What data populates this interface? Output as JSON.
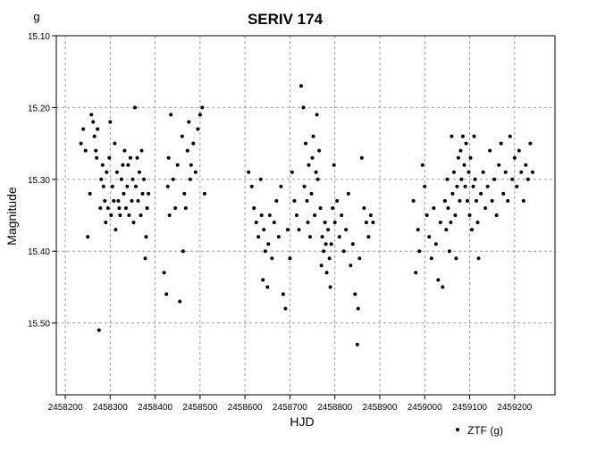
{
  "chart_data": {
    "type": "scatter",
    "title": "SERIV 174",
    "band_label": "g",
    "xlabel": "HJD",
    "ylabel": "Magnitude",
    "xlim": [
      2458180,
      2459290
    ],
    "ylim": [
      15.1,
      15.6
    ],
    "y_inverted": true,
    "grid": true,
    "legend_position": "bottom-right",
    "x_ticks": [
      2458200,
      2458300,
      2458400,
      2458500,
      2458600,
      2458700,
      2458800,
      2458900,
      2459000,
      2459100,
      2459200
    ],
    "y_ticks": [
      15.1,
      15.2,
      15.3,
      15.4,
      15.5
    ],
    "series": [
      {
        "name": "ZTF (g)",
        "color": "#000000",
        "points": [
          [
            2458235,
            15.25
          ],
          [
            2458240,
            15.23
          ],
          [
            2458245,
            15.26
          ],
          [
            2458250,
            15.38
          ],
          [
            2458255,
            15.32
          ],
          [
            2458258,
            15.21
          ],
          [
            2458262,
            15.22
          ],
          [
            2458265,
            15.24
          ],
          [
            2458268,
            15.26
          ],
          [
            2458270,
            15.27
          ],
          [
            2458272,
            15.23
          ],
          [
            2458275,
            15.51
          ],
          [
            2458278,
            15.34
          ],
          [
            2458280,
            15.3
          ],
          [
            2458283,
            15.28
          ],
          [
            2458285,
            15.31
          ],
          [
            2458288,
            15.33
          ],
          [
            2458290,
            15.36
          ],
          [
            2458292,
            15.29
          ],
          [
            2458295,
            15.34
          ],
          [
            2458298,
            15.27
          ],
          [
            2458300,
            15.22
          ],
          [
            2458302,
            15.35
          ],
          [
            2458305,
            15.31
          ],
          [
            2458308,
            15.33
          ],
          [
            2458310,
            15.25
          ],
          [
            2458312,
            15.37
          ],
          [
            2458315,
            15.29
          ],
          [
            2458318,
            15.33
          ],
          [
            2458320,
            15.34
          ],
          [
            2458322,
            15.35
          ],
          [
            2458325,
            15.3
          ],
          [
            2458328,
            15.28
          ],
          [
            2458330,
            15.32
          ],
          [
            2458332,
            15.26
          ],
          [
            2458335,
            15.34
          ],
          [
            2458338,
            15.31
          ],
          [
            2458340,
            15.28
          ],
          [
            2458342,
            15.35
          ],
          [
            2458345,
            15.27
          ],
          [
            2458348,
            15.33
          ],
          [
            2458350,
            15.3
          ],
          [
            2458352,
            15.36
          ],
          [
            2458355,
            15.2
          ],
          [
            2458357,
            15.31
          ],
          [
            2458360,
            15.27
          ],
          [
            2458362,
            15.33
          ],
          [
            2458365,
            15.29
          ],
          [
            2458368,
            15.35
          ],
          [
            2458370,
            15.26
          ],
          [
            2458372,
            15.32
          ],
          [
            2458375,
            15.3
          ],
          [
            2458378,
            15.41
          ],
          [
            2458380,
            15.38
          ],
          [
            2458382,
            15.34
          ],
          [
            2458385,
            15.32
          ],
          [
            2458420,
            15.43
          ],
          [
            2458425,
            15.46
          ],
          [
            2458428,
            15.31
          ],
          [
            2458430,
            15.27
          ],
          [
            2458432,
            15.35
          ],
          [
            2458435,
            15.21
          ],
          [
            2458440,
            15.3
          ],
          [
            2458445,
            15.34
          ],
          [
            2458450,
            15.28
          ],
          [
            2458455,
            15.47
          ],
          [
            2458460,
            15.24
          ],
          [
            2458462,
            15.4
          ],
          [
            2458465,
            15.32
          ],
          [
            2458468,
            15.34
          ],
          [
            2458472,
            15.26
          ],
          [
            2458475,
            15.22
          ],
          [
            2458478,
            15.3
          ],
          [
            2458480,
            15.28
          ],
          [
            2458485,
            15.25
          ],
          [
            2458490,
            15.29
          ],
          [
            2458495,
            15.23
          ],
          [
            2458500,
            15.21
          ],
          [
            2458505,
            15.2
          ],
          [
            2458510,
            15.32
          ],
          [
            2458608,
            15.29
          ],
          [
            2458615,
            15.31
          ],
          [
            2458620,
            15.34
          ],
          [
            2458625,
            15.36
          ],
          [
            2458630,
            15.38
          ],
          [
            2458635,
            15.3
          ],
          [
            2458637,
            15.35
          ],
          [
            2458640,
            15.44
          ],
          [
            2458642,
            15.37
          ],
          [
            2458645,
            15.4
          ],
          [
            2458650,
            15.45
          ],
          [
            2458652,
            15.39
          ],
          [
            2458655,
            15.35
          ],
          [
            2458660,
            15.41
          ],
          [
            2458665,
            15.36
          ],
          [
            2458670,
            15.33
          ],
          [
            2458675,
            15.38
          ],
          [
            2458680,
            15.31
          ],
          [
            2458685,
            15.46
          ],
          [
            2458690,
            15.48
          ],
          [
            2458695,
            15.37
          ],
          [
            2458700,
            15.41
          ],
          [
            2458705,
            15.29
          ],
          [
            2458710,
            15.33
          ],
          [
            2458715,
            15.35
          ],
          [
            2458720,
            15.37
          ],
          [
            2458725,
            15.17
          ],
          [
            2458730,
            15.2
          ],
          [
            2458732,
            15.31
          ],
          [
            2458735,
            15.25
          ],
          [
            2458738,
            15.33
          ],
          [
            2458740,
            15.36
          ],
          [
            2458742,
            15.28
          ],
          [
            2458745,
            15.38
          ],
          [
            2458748,
            15.32
          ],
          [
            2458750,
            15.27
          ],
          [
            2458752,
            15.24
          ],
          [
            2458755,
            15.35
          ],
          [
            2458758,
            15.29
          ],
          [
            2458760,
            15.21
          ],
          [
            2458762,
            15.3
          ],
          [
            2458765,
            15.26
          ],
          [
            2458768,
            15.34
          ],
          [
            2458770,
            15.42
          ],
          [
            2458772,
            15.38
          ],
          [
            2458775,
            15.4
          ],
          [
            2458778,
            15.36
          ],
          [
            2458780,
            15.39
          ],
          [
            2458782,
            15.43
          ],
          [
            2458785,
            15.37
          ],
          [
            2458788,
            15.41
          ],
          [
            2458790,
            15.45
          ],
          [
            2458792,
            15.39
          ],
          [
            2458795,
            15.34
          ],
          [
            2458798,
            15.28
          ],
          [
            2458800,
            15.36
          ],
          [
            2458805,
            15.33
          ],
          [
            2458810,
            15.38
          ],
          [
            2458815,
            15.35
          ],
          [
            2458820,
            15.4
          ],
          [
            2458825,
            15.37
          ],
          [
            2458830,
            15.32
          ],
          [
            2458835,
            15.42
          ],
          [
            2458840,
            15.39
          ],
          [
            2458845,
            15.46
          ],
          [
            2458850,
            15.53
          ],
          [
            2458852,
            15.48
          ],
          [
            2458855,
            15.41
          ],
          [
            2458860,
            15.27
          ],
          [
            2458865,
            15.34
          ],
          [
            2458870,
            15.36
          ],
          [
            2458875,
            15.38
          ],
          [
            2458880,
            15.35
          ],
          [
            2458885,
            15.36
          ],
          [
            2458975,
            15.33
          ],
          [
            2458980,
            15.43
          ],
          [
            2458985,
            15.37
          ],
          [
            2458988,
            15.4
          ],
          [
            2458995,
            15.28
          ],
          [
            2459000,
            15.31
          ],
          [
            2459005,
            15.35
          ],
          [
            2459010,
            15.38
          ],
          [
            2459015,
            15.41
          ],
          [
            2459020,
            15.34
          ],
          [
            2459025,
            15.39
          ],
          [
            2459030,
            15.44
          ],
          [
            2459035,
            15.36
          ],
          [
            2459040,
            15.45
          ],
          [
            2459045,
            15.33
          ],
          [
            2459048,
            15.37
          ],
          [
            2459050,
            15.3
          ],
          [
            2459052,
            15.34
          ],
          [
            2459055,
            15.4
          ],
          [
            2459058,
            15.36
          ],
          [
            2459060,
            15.24
          ],
          [
            2459062,
            15.32
          ],
          [
            2459065,
            15.29
          ],
          [
            2459068,
            15.35
          ],
          [
            2459070,
            15.41
          ],
          [
            2459072,
            15.31
          ],
          [
            2459075,
            15.27
          ],
          [
            2459078,
            15.33
          ],
          [
            2459080,
            15.26
          ],
          [
            2459082,
            15.3
          ],
          [
            2459085,
            15.24
          ],
          [
            2459088,
            15.28
          ],
          [
            2459090,
            15.31
          ],
          [
            2459092,
            15.25
          ],
          [
            2459095,
            15.33
          ],
          [
            2459098,
            15.29
          ],
          [
            2459100,
            15.35
          ],
          [
            2459102,
            15.27
          ],
          [
            2459105,
            15.37
          ],
          [
            2459108,
            15.31
          ],
          [
            2459110,
            15.24
          ],
          [
            2459112,
            15.3
          ],
          [
            2459115,
            15.33
          ],
          [
            2459118,
            15.36
          ],
          [
            2459120,
            15.41
          ],
          [
            2459125,
            15.32
          ],
          [
            2459130,
            15.29
          ],
          [
            2459135,
            15.34
          ],
          [
            2459140,
            15.31
          ],
          [
            2459145,
            15.26
          ],
          [
            2459150,
            15.33
          ],
          [
            2459155,
            15.3
          ],
          [
            2459160,
            15.35
          ],
          [
            2459165,
            15.28
          ],
          [
            2459170,
            15.25
          ],
          [
            2459175,
            15.32
          ],
          [
            2459180,
            15.29
          ],
          [
            2459185,
            15.33
          ],
          [
            2459190,
            15.24
          ],
          [
            2459195,
            15.3
          ],
          [
            2459200,
            15.27
          ],
          [
            2459205,
            15.31
          ],
          [
            2459210,
            15.26
          ],
          [
            2459215,
            15.29
          ],
          [
            2459220,
            15.33
          ],
          [
            2459225,
            15.28
          ],
          [
            2459230,
            15.3
          ],
          [
            2459235,
            15.25
          ],
          [
            2459240,
            15.29
          ]
        ]
      }
    ]
  }
}
